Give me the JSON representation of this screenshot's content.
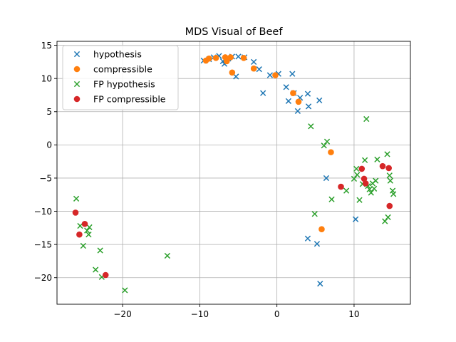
{
  "chart_data": {
    "type": "scatter",
    "title": "MDS Visual of Beef",
    "xlabel": "",
    "ylabel": "",
    "xlim": [
      -28.5,
      17.3
    ],
    "ylim": [
      -24.0,
      15.6
    ],
    "xticks": [
      -20,
      -10,
      0,
      10
    ],
    "yticks": [
      -20,
      -15,
      -10,
      -5,
      0,
      5,
      10,
      15
    ],
    "xtick_labels": [
      "−20",
      "−10",
      "0",
      "10"
    ],
    "ytick_labels": [
      "−20",
      "−15",
      "−10",
      "−5",
      "0",
      "5",
      "10",
      "15"
    ],
    "grid": true,
    "legend_position": "top-left",
    "series": [
      {
        "name": "hypothesis",
        "marker": "x",
        "color": "#1f77b4",
        "points": [
          [
            -9.5,
            12.7
          ],
          [
            -8.8,
            12.9
          ],
          [
            -8.2,
            13.2
          ],
          [
            -7.5,
            13.4
          ],
          [
            -7.0,
            12.6
          ],
          [
            -6.8,
            12.2
          ],
          [
            -6.3,
            13.0
          ],
          [
            -5.8,
            13.3
          ],
          [
            -5.3,
            10.3
          ],
          [
            -5.0,
            13.3
          ],
          [
            -4.2,
            13.2
          ],
          [
            -3.0,
            12.5
          ],
          [
            -2.3,
            11.4
          ],
          [
            -1.8,
            7.8
          ],
          [
            -0.9,
            10.5
          ],
          [
            0.2,
            10.7
          ],
          [
            1.2,
            8.7
          ],
          [
            1.5,
            6.6
          ],
          [
            2.0,
            10.7
          ],
          [
            2.2,
            7.8
          ],
          [
            2.7,
            5.1
          ],
          [
            3.0,
            7.1
          ],
          [
            4.0,
            7.7
          ],
          [
            4.1,
            5.8
          ],
          [
            5.5,
            6.7
          ],
          [
            6.4,
            -5.0
          ],
          [
            10.2,
            -11.2
          ],
          [
            4.0,
            -14.1
          ],
          [
            5.2,
            -14.9
          ],
          [
            5.6,
            -20.9
          ]
        ]
      },
      {
        "name": "compressible",
        "marker": "o",
        "color": "#ff7f0e",
        "points": [
          [
            -9.2,
            12.7
          ],
          [
            -8.8,
            13.0
          ],
          [
            -7.9,
            13.1
          ],
          [
            -6.7,
            13.2
          ],
          [
            -6.5,
            12.6
          ],
          [
            -6.0,
            13.2
          ],
          [
            -5.8,
            10.9
          ],
          [
            -4.3,
            13.1
          ],
          [
            -3.0,
            11.5
          ],
          [
            -0.2,
            10.5
          ],
          [
            2.1,
            7.8
          ],
          [
            2.8,
            6.5
          ],
          [
            7.0,
            -1.1
          ],
          [
            5.8,
            -12.7
          ]
        ]
      },
      {
        "name": "FP hypothesis",
        "marker": "x",
        "color": "#2ca02c",
        "points": [
          [
            -26.0,
            -8.1
          ],
          [
            -25.5,
            -12.2
          ],
          [
            -25.1,
            -15.2
          ],
          [
            -24.6,
            -12.9
          ],
          [
            -24.4,
            -13.5
          ],
          [
            -24.3,
            -12.4
          ],
          [
            -23.5,
            -18.8
          ],
          [
            -22.9,
            -15.9
          ],
          [
            -22.7,
            -19.9
          ],
          [
            -19.7,
            -21.9
          ],
          [
            -14.2,
            -16.7
          ],
          [
            4.4,
            2.8
          ],
          [
            6.1,
            -0.1
          ],
          [
            6.5,
            0.5
          ],
          [
            7.1,
            -8.2
          ],
          [
            4.9,
            -10.4
          ],
          [
            9.0,
            -6.9
          ],
          [
            10.0,
            -5.1
          ],
          [
            10.3,
            -3.6
          ],
          [
            10.4,
            -4.5
          ],
          [
            10.7,
            -8.3
          ],
          [
            11.1,
            -5.9
          ],
          [
            11.4,
            -2.3
          ],
          [
            11.6,
            3.9
          ],
          [
            11.8,
            -6.2
          ],
          [
            12.0,
            -6.7
          ],
          [
            12.2,
            -7.2
          ],
          [
            12.4,
            -5.8
          ],
          [
            12.6,
            -6.6
          ],
          [
            12.8,
            -5.4
          ],
          [
            13.0,
            -2.2
          ],
          [
            14.0,
            -11.5
          ],
          [
            14.3,
            -1.4
          ],
          [
            14.4,
            -10.9
          ],
          [
            14.6,
            -4.6
          ],
          [
            14.7,
            -5.4
          ],
          [
            15.0,
            -6.9
          ],
          [
            15.1,
            -7.4
          ]
        ]
      },
      {
        "name": "FP compressible",
        "marker": "o",
        "color": "#d62728",
        "points": [
          [
            -26.1,
            -10.2
          ],
          [
            -25.6,
            -13.5
          ],
          [
            -24.9,
            -11.9
          ],
          [
            -22.2,
            -19.6
          ],
          [
            8.3,
            -6.3
          ],
          [
            11.0,
            -3.6
          ],
          [
            11.3,
            -5.1
          ],
          [
            11.5,
            -5.8
          ],
          [
            13.7,
            -3.2
          ],
          [
            14.5,
            -3.5
          ],
          [
            14.6,
            -9.2
          ]
        ]
      }
    ]
  }
}
